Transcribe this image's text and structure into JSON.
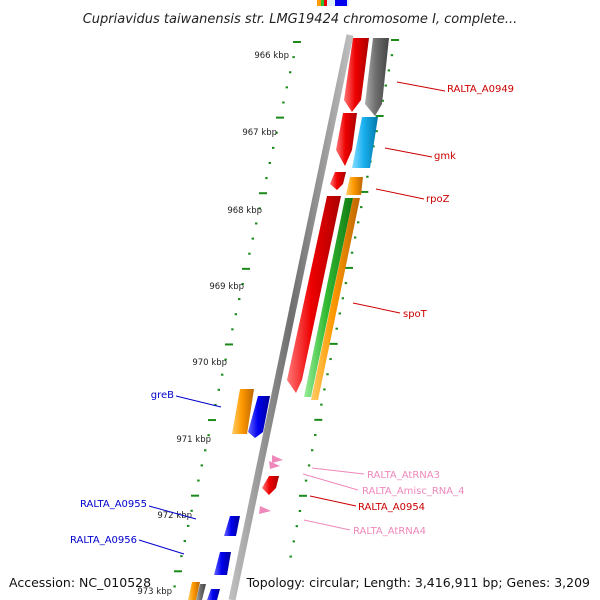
{
  "title": "Cupriavidus taiwanensis str. LMG19424 chromosome I, complete...",
  "footer": {
    "accession": "Accession: NC_010528",
    "topology": "Topology: circular; Length: 3,416,911 bp; Genes: 3,209"
  },
  "colors": {
    "backbone": "#8c8c8c",
    "tick": "#1a8a1a",
    "cds_red": "#ee0000",
    "cds_grey": "#6e6e6e",
    "cds_cyan": "#1ab0ee",
    "cds_orange": "#ff9900",
    "cds_green": "#33bb33",
    "cds_blue": "#0000ee",
    "rna_pink": "#ee88bb",
    "label_red": "#cc0000",
    "label_blue": "#0000cc",
    "label_pink": "#ee88bb"
  },
  "kbp_ticks": [
    "966 kbp",
    "967 kbp",
    "968 kbp",
    "969 kbp",
    "970 kbp",
    "971 kbp",
    "972 kbp",
    "973 kbp"
  ],
  "gene_labels": [
    {
      "text": "RALTA_A0949",
      "color": "label_red"
    },
    {
      "text": "gmk",
      "color": "label_red"
    },
    {
      "text": "rpoZ",
      "color": "label_red"
    },
    {
      "text": "spoT",
      "color": "label_red"
    },
    {
      "text": "greB",
      "color": "label_blue"
    },
    {
      "text": "RALTA_AtRNA3",
      "color": "label_pink"
    },
    {
      "text": "RALTA_Amisc_RNA_4",
      "color": "label_pink"
    },
    {
      "text": "RALTA_A0954",
      "color": "label_red"
    },
    {
      "text": "RALTA_AtRNA4",
      "color": "label_pink"
    },
    {
      "text": "RALTA_A0955",
      "color": "label_blue"
    },
    {
      "text": "RALTA_A0956",
      "color": "label_blue"
    }
  ]
}
